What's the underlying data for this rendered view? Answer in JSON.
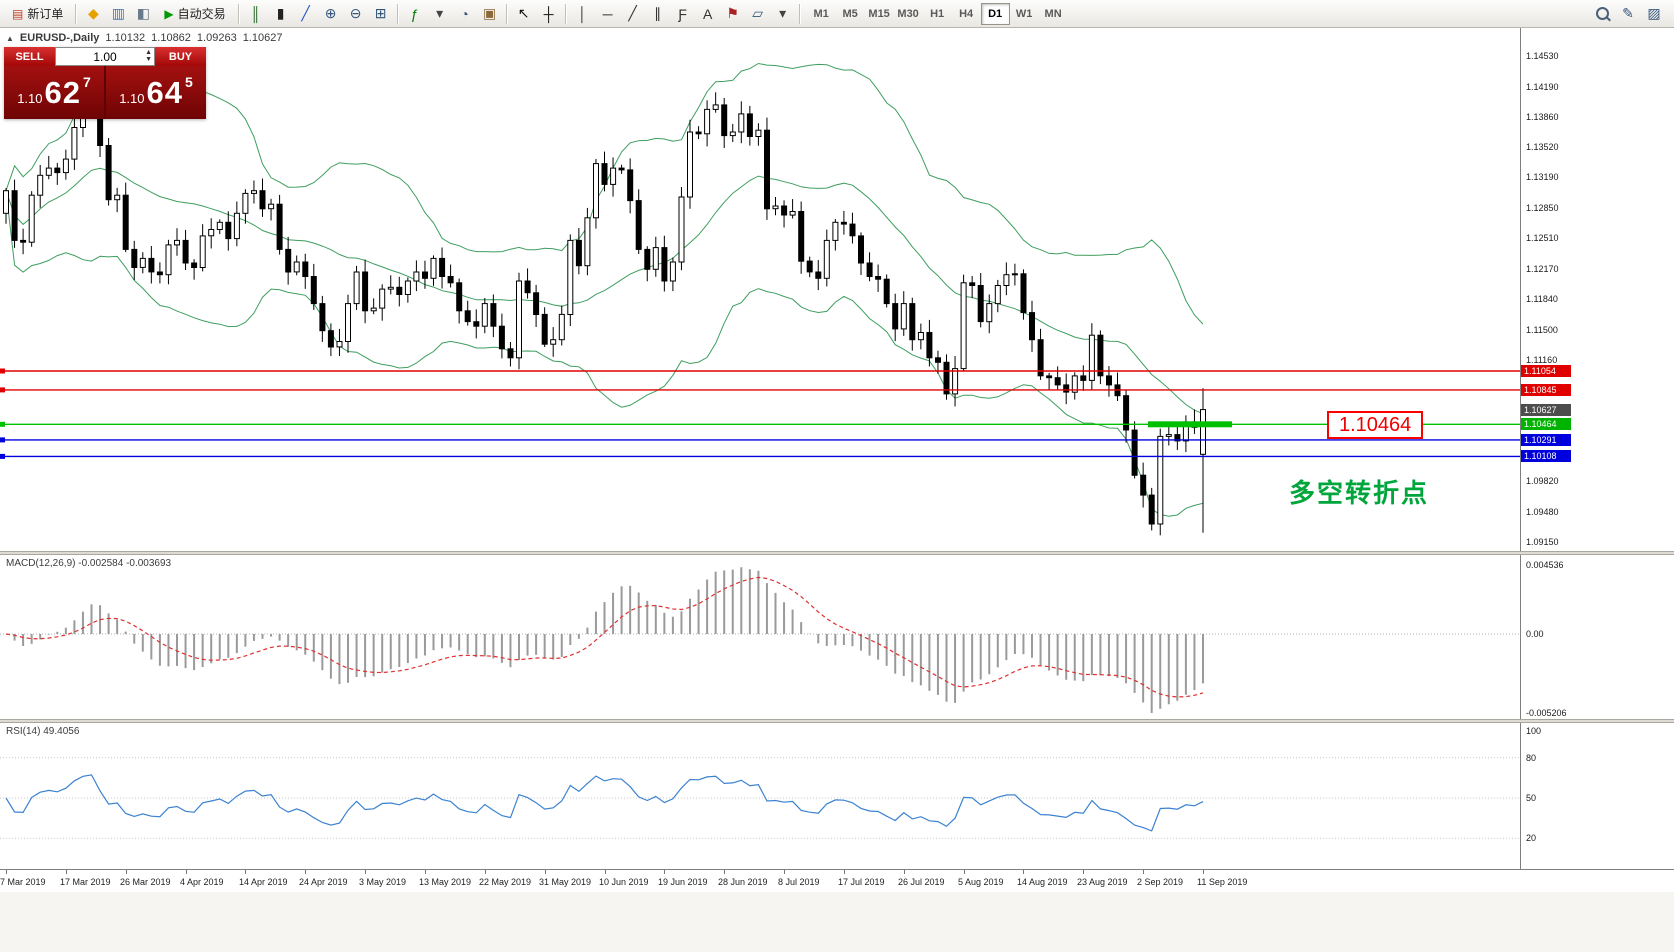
{
  "toolbar": {
    "items": [
      {
        "type": "button",
        "name": "new-order-button",
        "icon": "new-order-icon",
        "glyph": "▤",
        "glyph_color": "#c23b22",
        "label": "新订单"
      },
      {
        "type": "sep"
      },
      {
        "type": "icon",
        "name": "alerts-icon",
        "glyph": "◆",
        "glyph_color": "#e8a200"
      },
      {
        "type": "icon",
        "name": "data-window-icon",
        "glyph": "▥",
        "glyph_color": "#4a76a8"
      },
      {
        "type": "icon",
        "name": "navigator-icon",
        "glyph": "◧",
        "glyph_color": "#6a7a8a"
      },
      {
        "type": "button",
        "name": "auto-trading-button",
        "icon": "play-icon",
        "glyph": "▶",
        "glyph_color": "#009900",
        "label": "自动交易"
      },
      {
        "type": "sep"
      },
      {
        "type": "icon",
        "name": "bar-chart-icon",
        "glyph": "║",
        "glyph_color": "#2a6a2a"
      },
      {
        "type": "icon",
        "name": "candlestick-chart-icon",
        "glyph": "▮",
        "glyph_color": "#222222"
      },
      {
        "type": "icon",
        "name": "line-chart-icon",
        "glyph": "╱",
        "glyph_color": "#2255cc"
      },
      {
        "type": "icon",
        "name": "zoom-in-icon",
        "glyph": "⊕",
        "glyph_color": "#33557a"
      },
      {
        "type": "icon",
        "name": "zoom-out-icon",
        "glyph": "⊖",
        "glyph_color": "#33557a"
      },
      {
        "type": "icon",
        "name": "tile-windows-icon",
        "glyph": "⊞",
        "glyph_color": "#33557a"
      },
      {
        "type": "sep"
      },
      {
        "type": "icon",
        "name": "indicators-icon",
        "glyph": "ƒ",
        "glyph_color": "#007700"
      },
      {
        "type": "icon",
        "name": "indicators-dropdown-icon",
        "glyph": "▾",
        "glyph_color": "#444444"
      },
      {
        "type": "icon",
        "name": "periods-icon",
        "glyph": "◔",
        "glyph_color": "#33557a"
      },
      {
        "type": "icon",
        "name": "templates-icon",
        "glyph": "▣",
        "glyph_color": "#8a6a3a"
      },
      {
        "type": "sep"
      },
      {
        "type": "icon",
        "name": "cursor-icon",
        "glyph": "↖",
        "glyph_color": "#111111"
      },
      {
        "type": "icon",
        "name": "crosshair-icon",
        "glyph": "┼",
        "glyph_color": "#111111"
      },
      {
        "type": "sep"
      },
      {
        "type": "icon",
        "name": "vertical-line-icon",
        "glyph": "│",
        "glyph_color": "#333333"
      },
      {
        "type": "icon",
        "name": "horizontal-line-icon",
        "glyph": "─",
        "glyph_color": "#333333"
      },
      {
        "type": "icon",
        "name": "trendline-icon",
        "glyph": "╱",
        "glyph_color": "#333333"
      },
      {
        "type": "icon",
        "name": "channel-icon",
        "glyph": "∥",
        "glyph_color": "#333333"
      },
      {
        "type": "icon",
        "name": "fibonacci-icon",
        "glyph": "Ƒ",
        "glyph_color": "#333333"
      },
      {
        "type": "icon",
        "name": "text-icon",
        "glyph": "A",
        "glyph_color": "#333333"
      },
      {
        "type": "icon",
        "name": "label-icon",
        "glyph": "⚑",
        "glyph_color": "#aa2222"
      },
      {
        "type": "icon",
        "name": "shapes-icon",
        "glyph": "▱",
        "glyph_color": "#33557a"
      },
      {
        "type": "icon",
        "name": "shapes-dropdown-icon",
        "glyph": "▾",
        "glyph_color": "#444444"
      },
      {
        "type": "sep"
      }
    ],
    "timeframes": {
      "options": [
        "M1",
        "M5",
        "M15",
        "M30",
        "H1",
        "H4",
        "D1",
        "W1",
        "MN"
      ],
      "active": "D1"
    },
    "right_icons": [
      {
        "type": "magnifier",
        "name": "search-icon"
      },
      {
        "type": "icon",
        "name": "edit-icon",
        "glyph": "✎",
        "glyph_color": "#33557a"
      },
      {
        "type": "icon",
        "name": "properties-icon",
        "glyph": "▨",
        "glyph_color": "#33557a"
      }
    ]
  },
  "chart": {
    "header": {
      "symbol": "EURUSD-,Daily",
      "open": "1.10132",
      "high": "1.10862",
      "low": "1.09263",
      "close": "1.10627"
    },
    "price_axis_labels": [
      "1.14530",
      "1.14190",
      "1.13860",
      "1.13520",
      "1.13190",
      "1.12850",
      "1.12510",
      "1.12170",
      "1.11840",
      "1.11500",
      "1.11160",
      "1.09820",
      "1.09480",
      "1.09150"
    ],
    "price_tags": [
      {
        "text": "1.11054",
        "value": 1.11054,
        "color": "#e00000",
        "kind": "resistance-line",
        "draggable": true
      },
      {
        "text": "1.10845",
        "value": 1.10845,
        "color": "#e00000",
        "kind": "resistance-line",
        "draggable": true
      },
      {
        "text": "1.10627",
        "value": 1.10627,
        "color": "#4d4d4d",
        "kind": "current-price",
        "draggable": false
      },
      {
        "text": "1.10464",
        "value": 1.10464,
        "color": "#00b300",
        "kind": "pivot-line",
        "draggable": true
      },
      {
        "text": "1.10291",
        "value": 1.10291,
        "color": "#0000dd",
        "kind": "support-line",
        "draggable": true
      },
      {
        "text": "1.10108",
        "value": 1.10108,
        "color": "#0000dd",
        "kind": "support-line",
        "draggable": true
      }
    ],
    "hlines": [
      {
        "value": 1.11054,
        "color": "#e00000"
      },
      {
        "value": 1.10845,
        "color": "#e00000"
      },
      {
        "value": 1.10464,
        "color": "#00c000",
        "thick_segment": true
      },
      {
        "value": 1.10291,
        "color": "#0000dd"
      },
      {
        "value": 1.10108,
        "color": "#0000dd"
      }
    ],
    "annotations": {
      "price_label": "1.10464",
      "note": "多空转折点"
    }
  },
  "trade_panel": {
    "sell_label": "SELL",
    "buy_label": "BUY",
    "volume": "1.00",
    "sell": {
      "prefix": "1.10",
      "big": "62",
      "sup": "7"
    },
    "buy": {
      "prefix": "1.10",
      "big": "64",
      "sup": "5"
    }
  },
  "macd": {
    "label": "MACD(12,26,9) -0.002584 -0.003693",
    "axis": [
      "0.004536",
      "0.00",
      "-0.005206"
    ]
  },
  "rsi": {
    "label": "RSI(14) 49.4056",
    "axis": [
      "100",
      "80",
      "50",
      "20"
    ]
  },
  "date_axis": [
    "7 Mar 2019",
    "17 Mar 2019",
    "26 Mar 2019",
    "4 Apr 2019",
    "14 Apr 2019",
    "24 Apr 2019",
    "3 May 2019",
    "13 May 2019",
    "22 May 2019",
    "31 May 2019",
    "10 Jun 2019",
    "19 Jun 2019",
    "28 Jun 2019",
    "8 Jul 2019",
    "17 Jul 2019",
    "26 Jul 2019",
    "5 Aug 2019",
    "14 Aug 2019",
    "23 Aug 2019",
    "2 Sep 2019",
    "11 Sep 2019"
  ],
  "chart_data": {
    "type": "candlestick",
    "symbol": "EURUSD",
    "timeframe": "Daily",
    "y_range": [
      1.0915,
      1.1453
    ],
    "overlays": [
      "Bollinger Bands (20,2)"
    ],
    "indicators": [
      {
        "name": "MACD",
        "params": [
          12,
          26,
          9
        ],
        "values": [
          -0.002584,
          -0.003693
        ]
      },
      {
        "name": "RSI",
        "params": [
          14
        ],
        "value": 49.4056
      }
    ],
    "last_candle": {
      "open": 1.10132,
      "high": 1.10862,
      "low": 1.09263,
      "close": 1.10627
    },
    "closes": [
      1.1305,
      1.125,
      1.1248,
      1.13,
      1.1322,
      1.133,
      1.1325,
      1.134,
      1.1375,
      1.14,
      1.1408,
      1.1355,
      1.1295,
      1.13,
      1.124,
      1.122,
      1.123,
      1.1215,
      1.1212,
      1.1245,
      1.125,
      1.1225,
      1.122,
      1.1255,
      1.1262,
      1.127,
      1.1252,
      1.128,
      1.1302,
      1.1305,
      1.1285,
      1.129,
      1.124,
      1.1215,
      1.1226,
      1.121,
      1.118,
      1.115,
      1.1132,
      1.1138,
      1.118,
      1.1215,
      1.1172,
      1.1175,
      1.1196,
      1.1198,
      1.119,
      1.1205,
      1.1215,
      1.1208,
      1.123,
      1.121,
      1.1203,
      1.1172,
      1.116,
      1.1155,
      1.118,
      1.1155,
      1.113,
      1.112,
      1.1205,
      1.1192,
      1.1168,
      1.1135,
      1.114,
      1.1168,
      1.125,
      1.1222,
      1.1275,
      1.1335,
      1.1312,
      1.133,
      1.1328,
      1.1294,
      1.124,
      1.1218,
      1.1242,
      1.1205,
      1.1226,
      1.1298,
      1.137,
      1.1368,
      1.1395,
      1.14,
      1.1366,
      1.137,
      1.139,
      1.1365,
      1.1372,
      1.1285,
      1.1288,
      1.1278,
      1.1282,
      1.1227,
      1.1215,
      1.1208,
      1.125,
      1.127,
      1.1268,
      1.1255,
      1.1225,
      1.121,
      1.1207,
      1.118,
      1.1152,
      1.118,
      1.114,
      1.1148,
      1.112,
      1.1115,
      1.108,
      1.1108,
      1.1203,
      1.12,
      1.116,
      1.118,
      1.12,
      1.1212,
      1.1213,
      1.117,
      1.114,
      1.11,
      1.1098,
      1.109,
      1.1082,
      1.11,
      1.1095,
      1.1145,
      1.11,
      1.109,
      1.1078,
      1.104,
      1.099,
      1.0968,
      1.0936,
      1.1033,
      1.1035,
      1.1028,
      1.1049,
      1.1043,
      1.1063
    ]
  }
}
